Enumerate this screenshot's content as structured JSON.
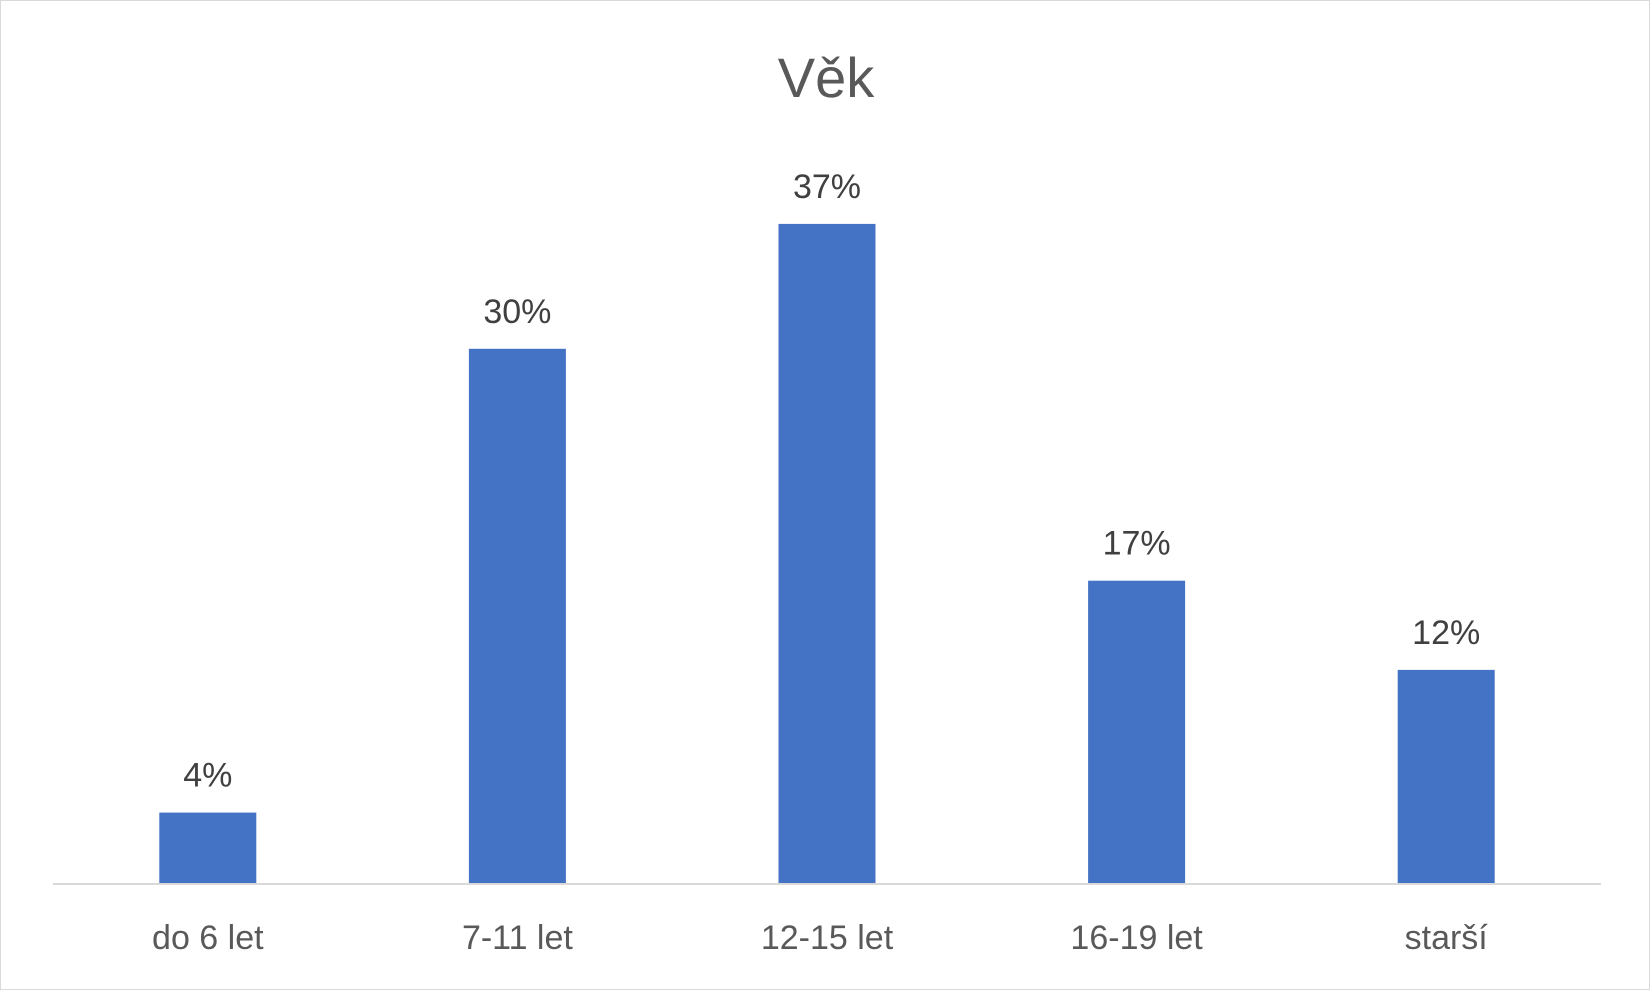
{
  "chart_data": {
    "type": "bar",
    "title": "Věk",
    "xlabel": "",
    "ylabel": "",
    "categories": [
      "do 6 let",
      "7-11 let",
      "12-15 let",
      "16-19 let",
      "starší"
    ],
    "values": [
      4,
      30,
      37,
      17,
      12
    ],
    "data_labels": [
      "4%",
      "30%",
      "37%",
      "17%",
      "12%"
    ],
    "unit": "%",
    "ylim": [
      0,
      40
    ],
    "grid": false,
    "legend": "none",
    "bar_color": "#4472C4"
  }
}
